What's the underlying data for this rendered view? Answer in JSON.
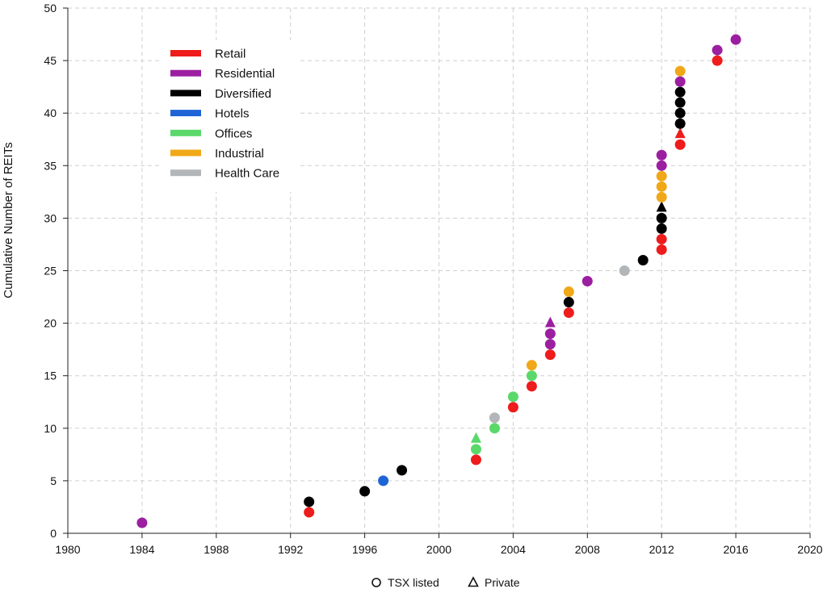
{
  "chart_data": {
    "type": "scatter",
    "title": "",
    "xlabel": "",
    "ylabel": "Cumulative Number of REITs",
    "xlim": [
      1980,
      2020
    ],
    "ylim": [
      0,
      50
    ],
    "xticks": [
      1980,
      1984,
      1988,
      1992,
      1996,
      2000,
      2004,
      2008,
      2012,
      2016,
      2020
    ],
    "yticks": [
      0,
      5,
      10,
      15,
      20,
      25,
      30,
      35,
      40,
      45,
      50
    ],
    "grid": true,
    "legend_position": "top-left",
    "sectors": [
      {
        "name": "Retail",
        "color": "#ee1c1c"
      },
      {
        "name": "Residential",
        "color": "#9b1fa0"
      },
      {
        "name": "Diversified",
        "color": "#000000"
      },
      {
        "name": "Hotels",
        "color": "#1f64d6"
      },
      {
        "name": "Offices",
        "color": "#5ad86a"
      },
      {
        "name": "Industrial",
        "color": "#f0a818"
      },
      {
        "name": "Health Care",
        "color": "#b2b6b8"
      }
    ],
    "marker_legend": [
      {
        "label": "TSX listed",
        "shape": "circle"
      },
      {
        "label": "Private",
        "shape": "triangle"
      }
    ],
    "points": [
      {
        "x": 1984,
        "y": 1,
        "sector": "Residential",
        "type": "TSX listed"
      },
      {
        "x": 1993,
        "y": 2,
        "sector": "Retail",
        "type": "TSX listed"
      },
      {
        "x": 1993,
        "y": 3,
        "sector": "Diversified",
        "type": "TSX listed"
      },
      {
        "x": 1996,
        "y": 4,
        "sector": "Diversified",
        "type": "TSX listed"
      },
      {
        "x": 1997,
        "y": 5,
        "sector": "Hotels",
        "type": "TSX listed"
      },
      {
        "x": 1998,
        "y": 6,
        "sector": "Diversified",
        "type": "TSX listed"
      },
      {
        "x": 2002,
        "y": 7,
        "sector": "Retail",
        "type": "TSX listed"
      },
      {
        "x": 2002,
        "y": 8,
        "sector": "Offices",
        "type": "TSX listed"
      },
      {
        "x": 2002,
        "y": 9,
        "sector": "Offices",
        "type": "Private"
      },
      {
        "x": 2003,
        "y": 10,
        "sector": "Offices",
        "type": "TSX listed"
      },
      {
        "x": 2003,
        "y": 11,
        "sector": "Health Care",
        "type": "TSX listed"
      },
      {
        "x": 2004,
        "y": 12,
        "sector": "Retail",
        "type": "TSX listed"
      },
      {
        "x": 2004,
        "y": 13,
        "sector": "Offices",
        "type": "TSX listed"
      },
      {
        "x": 2005,
        "y": 14,
        "sector": "Retail",
        "type": "TSX listed"
      },
      {
        "x": 2005,
        "y": 15,
        "sector": "Offices",
        "type": "TSX listed"
      },
      {
        "x": 2005,
        "y": 16,
        "sector": "Industrial",
        "type": "TSX listed"
      },
      {
        "x": 2006,
        "y": 17,
        "sector": "Retail",
        "type": "TSX listed"
      },
      {
        "x": 2006,
        "y": 18,
        "sector": "Residential",
        "type": "TSX listed"
      },
      {
        "x": 2006,
        "y": 19,
        "sector": "Residential",
        "type": "TSX listed"
      },
      {
        "x": 2006,
        "y": 20,
        "sector": "Residential",
        "type": "Private"
      },
      {
        "x": 2007,
        "y": 21,
        "sector": "Retail",
        "type": "TSX listed"
      },
      {
        "x": 2007,
        "y": 22,
        "sector": "Diversified",
        "type": "TSX listed"
      },
      {
        "x": 2007,
        "y": 23,
        "sector": "Industrial",
        "type": "TSX listed"
      },
      {
        "x": 2008,
        "y": 24,
        "sector": "Residential",
        "type": "TSX listed"
      },
      {
        "x": 2010,
        "y": 25,
        "sector": "Health Care",
        "type": "TSX listed"
      },
      {
        "x": 2011,
        "y": 26,
        "sector": "Diversified",
        "type": "TSX listed"
      },
      {
        "x": 2012,
        "y": 27,
        "sector": "Retail",
        "type": "TSX listed"
      },
      {
        "x": 2012,
        "y": 28,
        "sector": "Retail",
        "type": "TSX listed"
      },
      {
        "x": 2012,
        "y": 29,
        "sector": "Diversified",
        "type": "TSX listed"
      },
      {
        "x": 2012,
        "y": 30,
        "sector": "Diversified",
        "type": "TSX listed"
      },
      {
        "x": 2012,
        "y": 31,
        "sector": "Diversified",
        "type": "Private"
      },
      {
        "x": 2012,
        "y": 32,
        "sector": "Industrial",
        "type": "TSX listed"
      },
      {
        "x": 2012,
        "y": 33,
        "sector": "Industrial",
        "type": "TSX listed"
      },
      {
        "x": 2012,
        "y": 34,
        "sector": "Industrial",
        "type": "TSX listed"
      },
      {
        "x": 2012,
        "y": 35,
        "sector": "Residential",
        "type": "TSX listed"
      },
      {
        "x": 2012,
        "y": 36,
        "sector": "Residential",
        "type": "TSX listed"
      },
      {
        "x": 2013,
        "y": 37,
        "sector": "Retail",
        "type": "TSX listed"
      },
      {
        "x": 2013,
        "y": 38,
        "sector": "Retail",
        "type": "Private"
      },
      {
        "x": 2013,
        "y": 39,
        "sector": "Diversified",
        "type": "TSX listed"
      },
      {
        "x": 2013,
        "y": 40,
        "sector": "Diversified",
        "type": "TSX listed"
      },
      {
        "x": 2013,
        "y": 41,
        "sector": "Diversified",
        "type": "TSX listed"
      },
      {
        "x": 2013,
        "y": 42,
        "sector": "Diversified",
        "type": "TSX listed"
      },
      {
        "x": 2013,
        "y": 43,
        "sector": "Residential",
        "type": "TSX listed"
      },
      {
        "x": 2013,
        "y": 44,
        "sector": "Industrial",
        "type": "TSX listed"
      },
      {
        "x": 2015,
        "y": 45,
        "sector": "Retail",
        "type": "TSX listed"
      },
      {
        "x": 2015,
        "y": 46,
        "sector": "Residential",
        "type": "TSX listed"
      },
      {
        "x": 2016,
        "y": 47,
        "sector": "Residential",
        "type": "TSX listed"
      }
    ]
  }
}
